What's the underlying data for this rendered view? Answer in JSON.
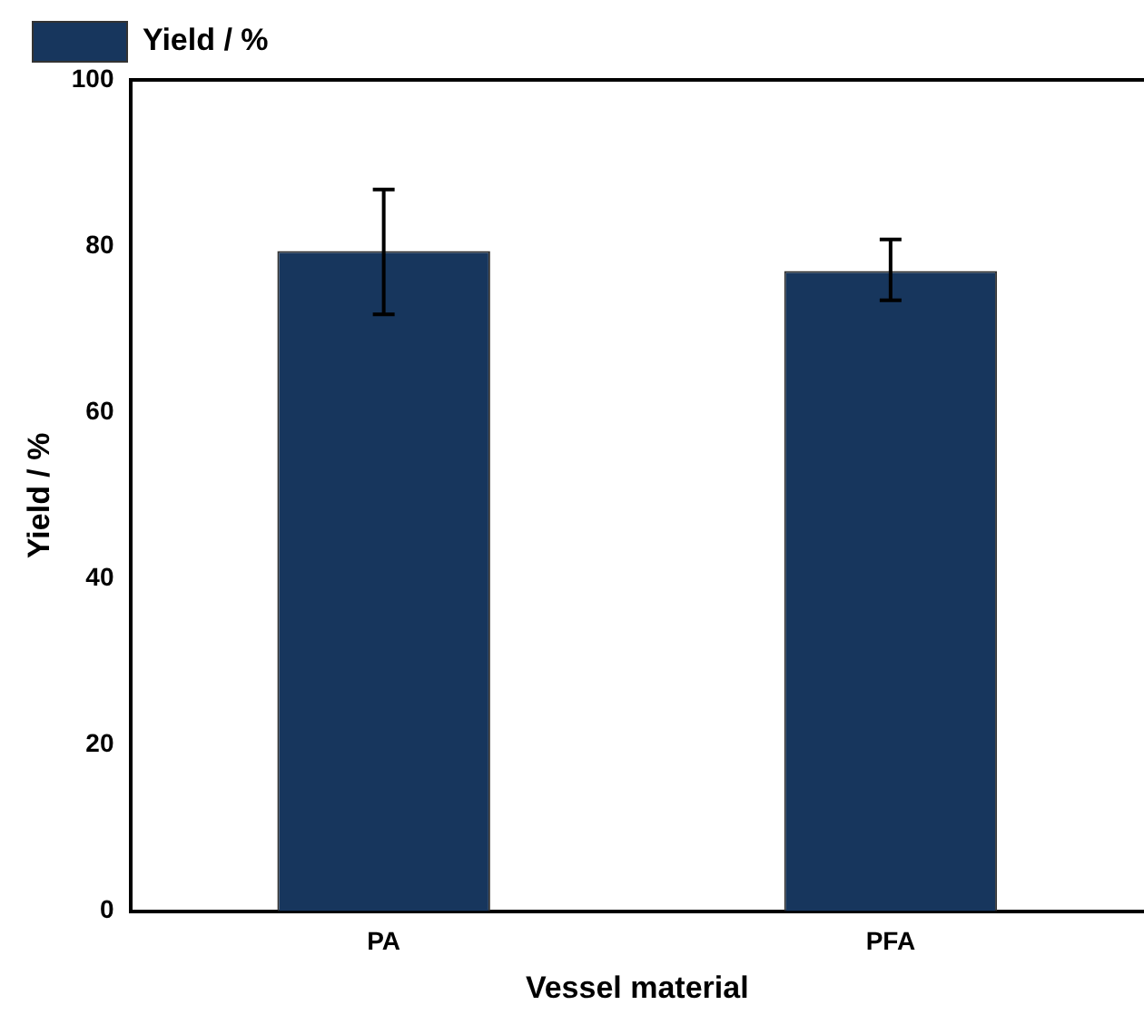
{
  "chart_data": {
    "type": "bar",
    "xlabel": "Vessel material",
    "ylabel": "Yield / %",
    "categories": [
      "PA",
      "PFA"
    ],
    "series": [
      {
        "name": "Yield / %",
        "color": "#17365d",
        "values": [
          79.4,
          77.0
        ],
        "errors": [
          [
            71.8,
            86.8
          ],
          [
            73.5,
            80.8
          ]
        ]
      }
    ],
    "ylim": [
      0,
      100
    ],
    "yticks": [
      0,
      20,
      40,
      60,
      80,
      100
    ],
    "grid": false,
    "legend": "top left"
  }
}
